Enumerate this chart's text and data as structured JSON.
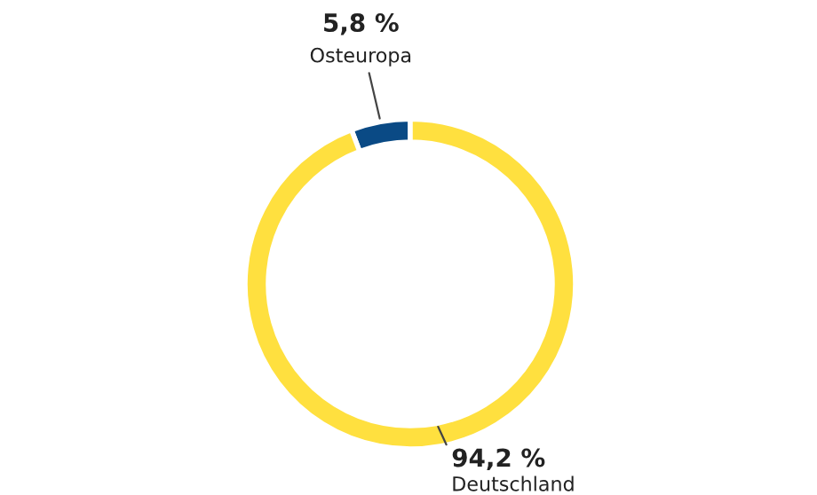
{
  "chart_data": {
    "type": "donut",
    "categories": [
      "Osteuropa",
      "Deutschland"
    ],
    "values": [
      5.8,
      94.2
    ],
    "colors": [
      "#0a4a85",
      "#ffe03f"
    ],
    "value_labels": [
      "5,8 %",
      "94,2 %"
    ]
  }
}
